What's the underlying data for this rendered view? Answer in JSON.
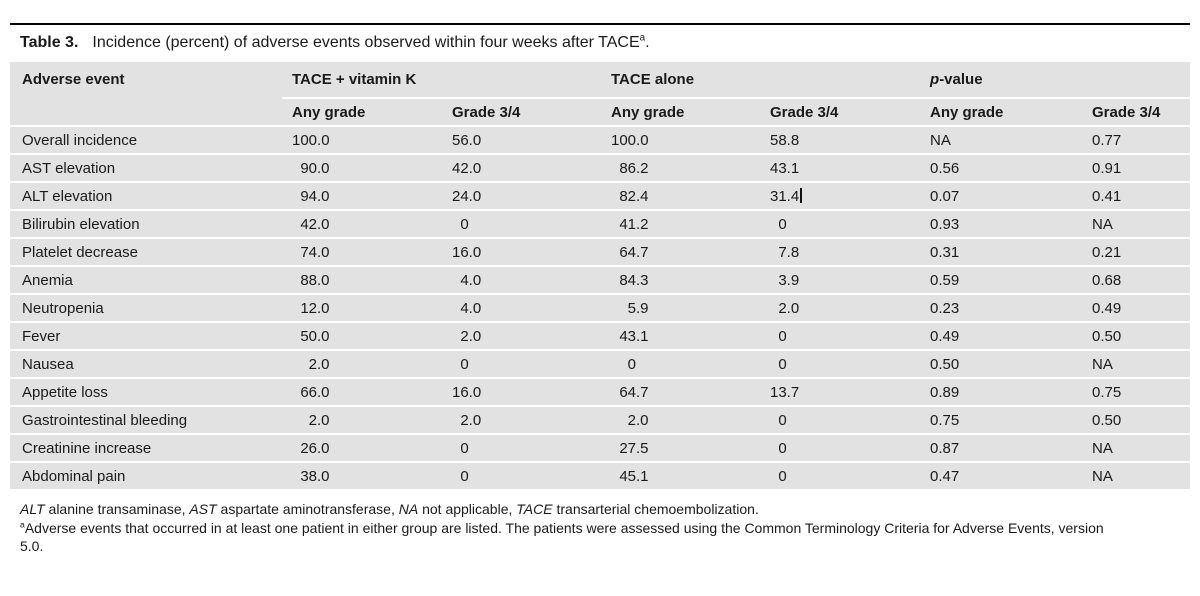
{
  "title": {
    "label": "Table 3.",
    "text": "Incidence (percent) of adverse events observed within four weeks after TACE",
    "superscript": "a",
    "suffix": "."
  },
  "table": {
    "columns": {
      "event": "Adverse event"
    },
    "groups": [
      {
        "label": "TACE + vitamin K"
      },
      {
        "label": "TACE alone"
      },
      {
        "p": "p",
        "rest": "-value"
      }
    ],
    "subheaders": [
      "Any grade",
      "Grade 3/4",
      "Any grade",
      "Grade 3/4",
      "Any grade",
      "Grade 3/4"
    ],
    "rows": [
      {
        "event": "Overall incidence",
        "values": [
          "100.0",
          "56.0",
          "100.0",
          "58.8",
          "NA",
          "0.77"
        ]
      },
      {
        "event": "AST elevation",
        "values": [
          "90.0",
          "42.0",
          "86.2",
          "43.1",
          "0.56",
          "0.91"
        ]
      },
      {
        "event": "ALT elevation",
        "values": [
          "94.0",
          "24.0",
          "82.4",
          "31.4|",
          "0.07",
          "0.41"
        ]
      },
      {
        "event": "Bilirubin elevation",
        "values": [
          "42.0",
          "0",
          "41.2",
          "0",
          "0.93",
          "NA"
        ]
      },
      {
        "event": "Platelet decrease",
        "values": [
          "74.0",
          "16.0",
          "64.7",
          "7.8",
          "0.31",
          "0.21"
        ]
      },
      {
        "event": "Anemia",
        "values": [
          "88.0",
          "4.0",
          "84.3",
          "3.9",
          "0.59",
          "0.68"
        ]
      },
      {
        "event": "Neutropenia",
        "values": [
          "12.0",
          "4.0",
          "5.9",
          "2.0",
          "0.23",
          "0.49"
        ]
      },
      {
        "event": "Fever",
        "values": [
          "50.0",
          "2.0",
          "43.1",
          "0",
          "0.49",
          "0.50"
        ]
      },
      {
        "event": "Nausea",
        "values": [
          "2.0",
          "0",
          "0",
          "0",
          "0.50",
          "NA"
        ]
      },
      {
        "event": "Appetite loss",
        "values": [
          "66.0",
          "16.0",
          "64.7",
          "13.7",
          "0.89",
          "0.75"
        ]
      },
      {
        "event": "Gastrointestinal bleeding",
        "values": [
          "2.0",
          "2.0",
          "2.0",
          "0",
          "0.75",
          "0.50"
        ]
      },
      {
        "event": "Creatinine increase",
        "values": [
          "26.0",
          "0",
          "27.5",
          "0",
          "0.87",
          "NA"
        ]
      },
      {
        "event": "Abdominal pain",
        "values": [
          "38.0",
          "0",
          "45.1",
          "0",
          "0.47",
          "NA"
        ]
      }
    ]
  },
  "footnotes": {
    "abbreviations": {
      "segments": [
        {
          "text": "ALT",
          "italic": true
        },
        {
          "text": " alanine transaminase, "
        },
        {
          "text": "AST",
          "italic": true
        },
        {
          "text": " aspartate aminotransferase, "
        },
        {
          "text": "NA",
          "italic": true
        },
        {
          "text": " not applicable, "
        },
        {
          "text": "TACE",
          "italic": true
        },
        {
          "text": " transarterial chemoembolization."
        }
      ]
    },
    "note_a": {
      "superscript": "a",
      "text": "Adverse events that occurred in at least one patient in either group are listed. The patients were assessed using the Common Terminology Criteria for Adverse Events, version 5.0."
    }
  },
  "colors": {
    "band_bg": "#e2e2e2",
    "row_separator": "#ffffff",
    "top_rule": "#000000",
    "text": "#1a1a1a"
  }
}
